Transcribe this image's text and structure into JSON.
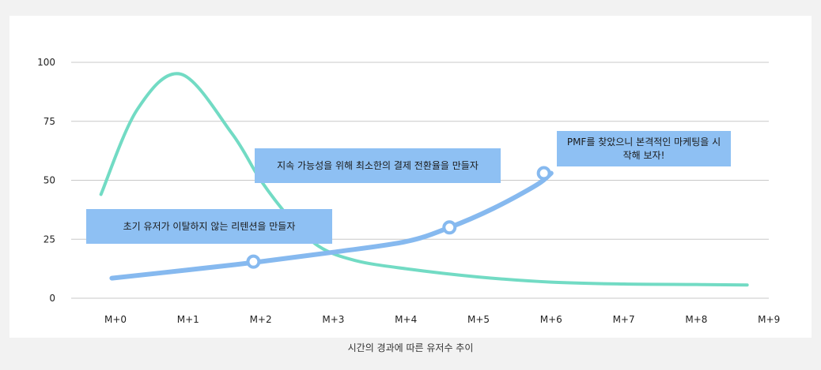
{
  "chart_data": {
    "type": "line",
    "title": "",
    "caption": "시간의 경과에 따른 유저수 추이",
    "xlabel": "",
    "ylabel": "",
    "categories": [
      "M+0",
      "M+1",
      "M+2",
      "M+3",
      "M+4",
      "M+5",
      "M+6",
      "M+7",
      "M+8",
      "M+9"
    ],
    "ylim": [
      0,
      100
    ],
    "yticks": [
      0,
      25,
      50,
      75,
      100
    ],
    "grid": true,
    "series": [
      {
        "color": "#72dbc4",
        "points": [
          [
            -0.2,
            44
          ],
          [
            0.3,
            80
          ],
          [
            0.9,
            95
          ],
          [
            1.6,
            70
          ],
          [
            2.0,
            50
          ],
          [
            2.4,
            34
          ],
          [
            2.8,
            22
          ],
          [
            3.3,
            16
          ],
          [
            4.0,
            12.5
          ],
          [
            5.0,
            9
          ],
          [
            6.0,
            6.8
          ],
          [
            7.0,
            6
          ],
          [
            8.0,
            5.8
          ],
          [
            8.7,
            5.6
          ]
        ]
      },
      {
        "color": "#86b9ef",
        "points": [
          [
            -0.05,
            8.5
          ],
          [
            1.0,
            12
          ],
          [
            2.0,
            15.5
          ],
          [
            3.0,
            19.5
          ],
          [
            4.0,
            24
          ],
          [
            4.6,
            30
          ],
          [
            5.2,
            38
          ],
          [
            5.8,
            48
          ],
          [
            6.0,
            53
          ]
        ],
        "markers": [
          [
            1.9,
            15.5
          ],
          [
            4.6,
            30
          ],
          [
            5.9,
            53
          ]
        ]
      }
    ],
    "annotations": [
      "초기 유저가 이탈하지 않는 리텐션을 만들자",
      "지속 가능성을 위해 최소한의 결제 전환율을 만들자",
      "PMF를 찾았으니 본격적인 마케팅을 시작해 보자!"
    ]
  }
}
